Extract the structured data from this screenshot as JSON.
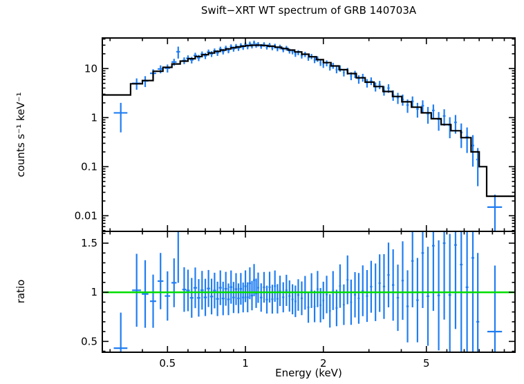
{
  "page": {
    "background": "#ffffff"
  },
  "chart_data": {
    "type": "scatter",
    "title": "Swift−XRT WT spectrum of GRB 140703A",
    "xlabel": "Energy (keV)",
    "xscale": "log",
    "xlim": [
      0.28,
      11
    ],
    "xticks": [
      0.5,
      1,
      2,
      5
    ],
    "xtick_labels": [
      "0.5",
      "1",
      "2",
      "5"
    ],
    "x_minor_ticks": [
      0.3,
      0.4,
      0.6,
      0.7,
      0.8,
      0.9,
      3,
      4,
      6,
      7,
      8,
      9,
      10
    ],
    "colors": {
      "data": "#1f7df2",
      "model": "#000000",
      "unity": "#00dd00",
      "frame": "#000000"
    },
    "panels": [
      {
        "name": "spectrum",
        "ylabel": "counts s⁻¹ keV⁻¹",
        "yscale": "log",
        "ylim": [
          0.0048,
          42
        ],
        "yticks": [
          0.01,
          0.1,
          1,
          10
        ],
        "ytick_labels": [
          "0.01",
          "0.1",
          "1",
          "10"
        ],
        "model_bins": [
          [
            0.28,
            0.36,
            2.9
          ],
          [
            0.36,
            0.4,
            4.9
          ],
          [
            0.4,
            0.44,
            5.7
          ],
          [
            0.44,
            0.48,
            8.8
          ],
          [
            0.48,
            0.52,
            10.6
          ],
          [
            0.52,
            0.56,
            12.4
          ],
          [
            0.56,
            0.6,
            14.2
          ],
          [
            0.6,
            0.64,
            15.9
          ],
          [
            0.64,
            0.68,
            17.6
          ],
          [
            0.68,
            0.72,
            19.2
          ],
          [
            0.72,
            0.76,
            20.8
          ],
          [
            0.76,
            0.8,
            22.4
          ],
          [
            0.8,
            0.84,
            23.8
          ],
          [
            0.84,
            0.88,
            25.2
          ],
          [
            0.88,
            0.92,
            26.5
          ],
          [
            0.92,
            0.96,
            27.6
          ],
          [
            0.96,
            1.0,
            28.6
          ],
          [
            1.0,
            1.05,
            29.4
          ],
          [
            1.05,
            1.1,
            29.9
          ],
          [
            1.1,
            1.16,
            30.0
          ],
          [
            1.16,
            1.22,
            29.6
          ],
          [
            1.22,
            1.3,
            28.6
          ],
          [
            1.3,
            1.38,
            27.2
          ],
          [
            1.38,
            1.46,
            25.6
          ],
          [
            1.46,
            1.55,
            23.8
          ],
          [
            1.55,
            1.65,
            21.8
          ],
          [
            1.65,
            1.76,
            19.6
          ],
          [
            1.76,
            1.88,
            17.4
          ],
          [
            1.88,
            2.0,
            15.2
          ],
          [
            2.0,
            2.14,
            13.2
          ],
          [
            2.14,
            2.3,
            11.3
          ],
          [
            2.3,
            2.48,
            9.5
          ],
          [
            2.48,
            2.68,
            7.9
          ],
          [
            2.68,
            2.9,
            6.5
          ],
          [
            2.9,
            3.14,
            5.3
          ],
          [
            3.14,
            3.4,
            4.3
          ],
          [
            3.4,
            3.7,
            3.4
          ],
          [
            3.7,
            4.02,
            2.7
          ],
          [
            4.02,
            4.38,
            2.1
          ],
          [
            4.38,
            4.78,
            1.63
          ],
          [
            4.78,
            5.22,
            1.25
          ],
          [
            5.22,
            5.7,
            0.95
          ],
          [
            5.7,
            6.22,
            0.72
          ],
          [
            6.22,
            6.8,
            0.54
          ],
          [
            6.8,
            7.44,
            0.39
          ],
          [
            7.44,
            8.0,
            0.2
          ],
          [
            8.0,
            8.55,
            0.1
          ],
          [
            8.55,
            11.0,
            0.025
          ]
        ],
        "points": [
          [
            0.33,
            0.02,
            1.25,
            0.75
          ],
          [
            0.38,
            0.015,
            5.0,
            1.3
          ],
          [
            0.41,
            0.012,
            5.6,
            1.4
          ],
          [
            0.44,
            0.012,
            8.0,
            1.7
          ],
          [
            0.47,
            0.012,
            9.8,
            1.8
          ],
          [
            0.5,
            0.012,
            10.2,
            1.9
          ],
          [
            0.53,
            0.012,
            13.6,
            2.2
          ],
          [
            0.55,
            0.009,
            22.0,
            6.0
          ],
          [
            0.58,
            0.01,
            14.6,
            2.3
          ],
          [
            0.6,
            0.01,
            16.2,
            2.4
          ],
          [
            0.62,
            0.01,
            15.0,
            2.3
          ],
          [
            0.64,
            0.01,
            18.4,
            2.6
          ],
          [
            0.66,
            0.01,
            16.6,
            2.4
          ],
          [
            0.68,
            0.01,
            19.6,
            2.7
          ],
          [
            0.7,
            0.01,
            18.2,
            2.6
          ],
          [
            0.72,
            0.01,
            21.6,
            2.8
          ],
          [
            0.74,
            0.01,
            19.9,
            2.7
          ],
          [
            0.76,
            0.01,
            22.8,
            2.9
          ],
          [
            0.78,
            0.01,
            20.9,
            2.8
          ],
          [
            0.8,
            0.01,
            24.9,
            3.0
          ],
          [
            0.82,
            0.01,
            22.3,
            2.9
          ],
          [
            0.84,
            0.01,
            26.1,
            3.1
          ],
          [
            0.86,
            0.01,
            23.4,
            2.9
          ],
          [
            0.88,
            0.01,
            27.9,
            3.2
          ],
          [
            0.9,
            0.01,
            25.1,
            3.0
          ],
          [
            0.92,
            0.01,
            28.5,
            3.2
          ],
          [
            0.94,
            0.01,
            25.9,
            3.0
          ],
          [
            0.96,
            0.01,
            29.6,
            3.3
          ],
          [
            0.98,
            0.01,
            27.1,
            3.1
          ],
          [
            1.0,
            0.01,
            31.2,
            3.4
          ],
          [
            1.02,
            0.01,
            27.9,
            3.2
          ],
          [
            1.04,
            0.01,
            32.1,
            3.4
          ],
          [
            1.06,
            0.01,
            28.9,
            3.2
          ],
          [
            1.08,
            0.01,
            33.6,
            3.5
          ],
          [
            1.1,
            0.01,
            29.7,
            3.2
          ],
          [
            1.12,
            0.01,
            31.4,
            3.3
          ],
          [
            1.15,
            0.012,
            28.4,
            3.1
          ],
          [
            1.18,
            0.012,
            31.1,
            3.3
          ],
          [
            1.21,
            0.012,
            27.4,
            3.0
          ],
          [
            1.24,
            0.012,
            30.1,
            3.2
          ],
          [
            1.27,
            0.012,
            26.6,
            3.0
          ],
          [
            1.3,
            0.012,
            28.9,
            3.1
          ],
          [
            1.33,
            0.012,
            25.4,
            2.9
          ],
          [
            1.36,
            0.012,
            27.6,
            3.0
          ],
          [
            1.4,
            0.014,
            24.3,
            2.8
          ],
          [
            1.44,
            0.014,
            26.1,
            2.9
          ],
          [
            1.48,
            0.014,
            22.9,
            2.7
          ],
          [
            1.52,
            0.014,
            22.1,
            2.6
          ],
          [
            1.56,
            0.014,
            19.8,
            2.5
          ],
          [
            1.6,
            0.015,
            21.2,
            2.5
          ],
          [
            1.65,
            0.015,
            18.4,
            2.4
          ],
          [
            1.7,
            0.015,
            19.5,
            2.4
          ],
          [
            1.75,
            0.015,
            16.6,
            2.2
          ],
          [
            1.8,
            0.015,
            17.7,
            2.2
          ],
          [
            1.85,
            0.015,
            14.9,
            2.0
          ],
          [
            1.9,
            0.016,
            15.7,
            2.0
          ],
          [
            1.95,
            0.016,
            13.2,
            1.9
          ],
          [
            2.0,
            0.016,
            12.1,
            1.8
          ],
          [
            2.06,
            0.018,
            12.9,
            1.8
          ],
          [
            2.12,
            0.018,
            10.7,
            1.6
          ],
          [
            2.18,
            0.018,
            11.5,
            1.6
          ],
          [
            2.25,
            0.02,
            9.5,
            1.5
          ],
          [
            2.32,
            0.02,
            10.1,
            1.5
          ],
          [
            2.4,
            0.02,
            8.3,
            1.4
          ],
          [
            2.48,
            0.022,
            8.9,
            1.4
          ],
          [
            2.56,
            0.022,
            7.1,
            1.3
          ],
          [
            2.65,
            0.025,
            7.7,
            1.3
          ],
          [
            2.74,
            0.025,
            6.1,
            1.2
          ],
          [
            2.84,
            0.027,
            6.6,
            1.2
          ],
          [
            2.95,
            0.028,
            5.1,
            1.0
          ],
          [
            3.06,
            0.03,
            5.6,
            1.0
          ],
          [
            3.18,
            0.03,
            4.3,
            0.9
          ],
          [
            3.3,
            0.032,
            4.7,
            0.9
          ],
          [
            3.43,
            0.034,
            3.6,
            0.8
          ],
          [
            3.57,
            0.036,
            4.0,
            0.8
          ],
          [
            3.72,
            0.038,
            2.9,
            0.7
          ],
          [
            3.88,
            0.04,
            2.55,
            0.65
          ],
          [
            4.05,
            0.042,
            2.35,
            0.6
          ],
          [
            4.23,
            0.045,
            1.8,
            0.55
          ],
          [
            4.42,
            0.048,
            2.15,
            0.55
          ],
          [
            4.62,
            0.05,
            1.5,
            0.5
          ],
          [
            4.84,
            0.055,
            1.75,
            0.5
          ],
          [
            5.07,
            0.058,
            1.2,
            0.45
          ],
          [
            5.32,
            0.06,
            1.4,
            0.45
          ],
          [
            5.58,
            0.065,
            0.92,
            0.38
          ],
          [
            5.86,
            0.068,
            1.08,
            0.4
          ],
          [
            6.16,
            0.07,
            0.7,
            0.32
          ],
          [
            6.48,
            0.075,
            0.8,
            0.33
          ],
          [
            6.82,
            0.08,
            0.5,
            0.26
          ],
          [
            7.18,
            0.085,
            0.41,
            0.22
          ],
          [
            7.56,
            0.09,
            0.27,
            0.17
          ],
          [
            7.9,
            0.1,
            0.14,
            0.1
          ],
          [
            9.2,
            0.6,
            0.015,
            0.012
          ]
        ]
      },
      {
        "name": "ratio",
        "ylabel": "ratio",
        "yscale": "linear",
        "ylim": [
          0.39,
          1.62
        ],
        "yticks": [
          0.5,
          1,
          1.5
        ],
        "ytick_labels": [
          "0.5",
          "1",
          "1.5"
        ],
        "y_minor_ticks": [
          0.4,
          0.6,
          0.7,
          0.8,
          0.9,
          1.1,
          1.2,
          1.3,
          1.4,
          1.6
        ],
        "unity_value": 1
      }
    ]
  }
}
